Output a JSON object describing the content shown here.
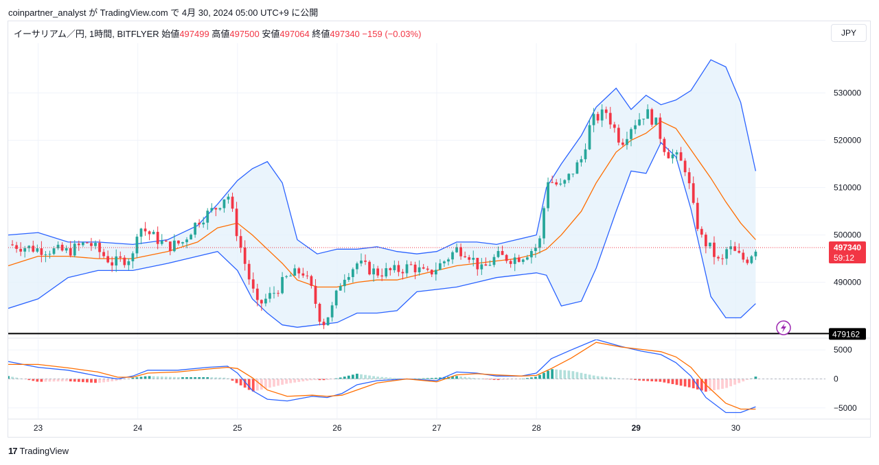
{
  "header": {
    "attribution": "coinpartner_analyst が TradingView.com で 4月 30, 2024 05:00 UTC+9 に公開"
  },
  "legend": {
    "symbol": "イーサリアム／円, 1時間, BITFLYER",
    "open_label": "始値",
    "open": "497499",
    "high_label": "高値",
    "high": "497500",
    "low_label": "安値",
    "low": "497064",
    "close_label": "終値",
    "close": "497340",
    "change": "−159 (−0.03%)"
  },
  "currency_button": "JPY",
  "footer": {
    "logo_mark": "17",
    "logo_text": "TradingView"
  },
  "colors": {
    "up": "#26a69a",
    "down": "#f23645",
    "bb_line": "#2962ff",
    "bb_fill": "#e3f0fb",
    "basis": "#ff6d00",
    "macd": "#2962ff",
    "signal": "#ff6d00",
    "hist_up_strong": "#26a69a",
    "hist_up_weak": "#b2dfdb",
    "hist_down_strong": "#ff5252",
    "hist_down_weak": "#ffcdd2"
  },
  "icons": {
    "flash": "lightning-icon"
  },
  "chart_data": [
    {
      "type": "candlestick",
      "x_unit": "day of month (April 2024, hourly bars)",
      "x_range": [
        22.7,
        30.9
      ],
      "x_ticks": [
        {
          "value": 23,
          "label": "23"
        },
        {
          "value": 24,
          "label": "24"
        },
        {
          "value": 25,
          "label": "25"
        },
        {
          "value": 26,
          "label": "26"
        },
        {
          "value": 27,
          "label": "27"
        },
        {
          "value": 28,
          "label": "28"
        },
        {
          "value": 29,
          "label": "29",
          "bold": true
        },
        {
          "value": 30,
          "label": "30"
        }
      ],
      "ylim": [
        478500,
        540500
      ],
      "y_ticks": [
        490000,
        500000,
        510000,
        520000,
        530000
      ],
      "last_price_label": "497340",
      "countdown_label": "59:12",
      "horizontal_line": {
        "value": 479162,
        "label": "479162"
      },
      "close_path": [
        [
          22.7,
          498000
        ],
        [
          23.0,
          497000
        ],
        [
          23.3,
          496500
        ],
        [
          23.5,
          498500
        ],
        [
          23.75,
          494000
        ],
        [
          23.95,
          495500
        ],
        [
          24.0,
          502000
        ],
        [
          24.1,
          500500
        ],
        [
          24.3,
          497500
        ],
        [
          24.45,
          498500
        ],
        [
          24.6,
          503000
        ],
        [
          24.8,
          506000
        ],
        [
          24.9,
          509000
        ],
        [
          25.0,
          500000
        ],
        [
          25.1,
          492000
        ],
        [
          25.2,
          485000
        ],
        [
          25.35,
          487500
        ],
        [
          25.5,
          491000
        ],
        [
          25.65,
          492500
        ],
        [
          25.75,
          488000
        ],
        [
          25.85,
          481000
        ],
        [
          25.95,
          484500
        ],
        [
          26.05,
          491000
        ],
        [
          26.2,
          494000
        ],
        [
          26.4,
          492000
        ],
        [
          26.6,
          492500
        ],
        [
          26.75,
          493500
        ],
        [
          26.9,
          491500
        ],
        [
          27.05,
          494000
        ],
        [
          27.2,
          497000
        ],
        [
          27.3,
          496500
        ],
        [
          27.45,
          492500
        ],
        [
          27.6,
          495500
        ],
        [
          27.75,
          495000
        ],
        [
          27.85,
          495500
        ],
        [
          28.0,
          497500
        ],
        [
          28.05,
          499500
        ],
        [
          28.1,
          512000
        ],
        [
          28.25,
          510000
        ],
        [
          28.45,
          516000
        ],
        [
          28.55,
          524000
        ],
        [
          28.7,
          526000
        ],
        [
          28.85,
          519500
        ],
        [
          28.95,
          523000
        ],
        [
          29.1,
          526000
        ],
        [
          29.2,
          523500
        ],
        [
          29.3,
          517500
        ],
        [
          29.4,
          516500
        ],
        [
          29.5,
          514000
        ],
        [
          29.58,
          505000
        ],
        [
          29.65,
          499500
        ],
        [
          29.75,
          497000
        ],
        [
          29.85,
          493500
        ],
        [
          29.92,
          497500
        ],
        [
          30.0,
          496000
        ],
        [
          30.1,
          494500
        ],
        [
          30.2,
          497340
        ]
      ],
      "bollinger": {
        "upper": [
          [
            22.7,
            500000
          ],
          [
            23.0,
            500500
          ],
          [
            23.3,
            498500
          ],
          [
            23.6,
            498500
          ],
          [
            23.95,
            498000
          ],
          [
            24.3,
            499000
          ],
          [
            24.6,
            502000
          ],
          [
            24.8,
            506500
          ],
          [
            25.0,
            511500
          ],
          [
            25.15,
            514000
          ],
          [
            25.3,
            515500
          ],
          [
            25.45,
            511000
          ],
          [
            25.6,
            499000
          ],
          [
            25.8,
            496000
          ],
          [
            26.0,
            497000
          ],
          [
            26.2,
            497000
          ],
          [
            26.4,
            497500
          ],
          [
            26.6,
            496500
          ],
          [
            26.8,
            496000
          ],
          [
            27.0,
            496500
          ],
          [
            27.2,
            498500
          ],
          [
            27.4,
            498500
          ],
          [
            27.6,
            498000
          ],
          [
            27.8,
            499000
          ],
          [
            28.0,
            500000
          ],
          [
            28.1,
            510000
          ],
          [
            28.25,
            515000
          ],
          [
            28.45,
            521000
          ],
          [
            28.6,
            527000
          ],
          [
            28.8,
            531000
          ],
          [
            28.95,
            526500
          ],
          [
            29.1,
            529500
          ],
          [
            29.25,
            527500
          ],
          [
            29.4,
            528500
          ],
          [
            29.55,
            530500
          ],
          [
            29.75,
            537000
          ],
          [
            29.9,
            535500
          ],
          [
            30.05,
            528000
          ],
          [
            30.2,
            513500
          ]
        ],
        "basis": [
          [
            22.7,
            493500
          ],
          [
            23.0,
            495500
          ],
          [
            23.3,
            495500
          ],
          [
            23.6,
            495000
          ],
          [
            23.95,
            495000
          ],
          [
            24.3,
            496500
          ],
          [
            24.6,
            498500
          ],
          [
            24.8,
            501500
          ],
          [
            25.0,
            502500
          ],
          [
            25.15,
            500000
          ],
          [
            25.3,
            497000
          ],
          [
            25.45,
            494000
          ],
          [
            25.6,
            490500
          ],
          [
            25.8,
            489000
          ],
          [
            26.0,
            489000
          ],
          [
            26.2,
            490000
          ],
          [
            26.4,
            490500
          ],
          [
            26.6,
            490500
          ],
          [
            26.8,
            491500
          ],
          [
            27.0,
            492500
          ],
          [
            27.2,
            493500
          ],
          [
            27.4,
            494000
          ],
          [
            27.6,
            494500
          ],
          [
            27.8,
            495000
          ],
          [
            28.0,
            496000
          ],
          [
            28.1,
            497000
          ],
          [
            28.25,
            500000
          ],
          [
            28.45,
            505000
          ],
          [
            28.6,
            511000
          ],
          [
            28.8,
            517500
          ],
          [
            28.95,
            520000
          ],
          [
            29.1,
            521500
          ],
          [
            29.25,
            524000
          ],
          [
            29.4,
            522500
          ],
          [
            29.55,
            518000
          ],
          [
            29.75,
            512000
          ],
          [
            29.9,
            507000
          ],
          [
            30.05,
            502500
          ],
          [
            30.2,
            499000
          ]
        ],
        "lower": [
          [
            22.7,
            484500
          ],
          [
            23.0,
            486500
          ],
          [
            23.3,
            491000
          ],
          [
            23.6,
            492500
          ],
          [
            23.95,
            492500
          ],
          [
            24.3,
            494000
          ],
          [
            24.6,
            495500
          ],
          [
            24.8,
            496500
          ],
          [
            25.0,
            492500
          ],
          [
            25.15,
            486500
          ],
          [
            25.3,
            483500
          ],
          [
            25.45,
            481000
          ],
          [
            25.6,
            480500
          ],
          [
            25.8,
            481000
          ],
          [
            26.0,
            481500
          ],
          [
            26.2,
            483500
          ],
          [
            26.4,
            483500
          ],
          [
            26.6,
            484000
          ],
          [
            26.8,
            488000
          ],
          [
            27.0,
            488500
          ],
          [
            27.2,
            489000
          ],
          [
            27.4,
            490000
          ],
          [
            27.6,
            491000
          ],
          [
            27.8,
            491500
          ],
          [
            28.0,
            492000
          ],
          [
            28.1,
            491500
          ],
          [
            28.25,
            485000
          ],
          [
            28.45,
            486000
          ],
          [
            28.6,
            493000
          ],
          [
            28.8,
            505000
          ],
          [
            28.95,
            513500
          ],
          [
            29.1,
            513000
          ],
          [
            29.25,
            519500
          ],
          [
            29.4,
            516500
          ],
          [
            29.55,
            505500
          ],
          [
            29.75,
            487000
          ],
          [
            29.9,
            482500
          ],
          [
            30.05,
            482500
          ],
          [
            30.2,
            485500
          ]
        ]
      }
    },
    {
      "type": "macd",
      "x_unit": "day of month (April 2024)",
      "ylim": [
        -6800,
        6800
      ],
      "y_ticks": [
        {
          "value": 5000,
          "label": "5000"
        },
        {
          "value": 0,
          "label": "0"
        },
        {
          "value": -5000,
          "label": "−5000"
        }
      ],
      "macd": [
        [
          22.7,
          3000
        ],
        [
          23.0,
          2000
        ],
        [
          23.3,
          1500
        ],
        [
          23.6,
          500
        ],
        [
          23.8,
          0
        ],
        [
          23.95,
          500
        ],
        [
          24.1,
          1500
        ],
        [
          24.4,
          1500
        ],
        [
          24.7,
          2000
        ],
        [
          24.9,
          2200
        ],
        [
          25.0,
          1000
        ],
        [
          25.15,
          -2000
        ],
        [
          25.3,
          -3500
        ],
        [
          25.5,
          -3800
        ],
        [
          25.75,
          -3000
        ],
        [
          25.9,
          -3200
        ],
        [
          26.05,
          -2500
        ],
        [
          26.2,
          -1000
        ],
        [
          26.4,
          -300
        ],
        [
          26.7,
          0
        ],
        [
          27.0,
          -300
        ],
        [
          27.2,
          1200
        ],
        [
          27.4,
          1000
        ],
        [
          27.6,
          500
        ],
        [
          27.85,
          500
        ],
        [
          28.0,
          1000
        ],
        [
          28.15,
          3500
        ],
        [
          28.35,
          5000
        ],
        [
          28.6,
          6800
        ],
        [
          28.85,
          5600
        ],
        [
          29.05,
          4800
        ],
        [
          29.25,
          4200
        ],
        [
          29.4,
          2800
        ],
        [
          29.55,
          500
        ],
        [
          29.7,
          -3200
        ],
        [
          29.9,
          -5800
        ],
        [
          30.05,
          -5800
        ],
        [
          30.2,
          -4800
        ]
      ],
      "signal": [
        [
          22.7,
          2500
        ],
        [
          23.0,
          2500
        ],
        [
          23.3,
          1900
        ],
        [
          23.6,
          1200
        ],
        [
          23.8,
          300
        ],
        [
          23.95,
          300
        ],
        [
          24.1,
          1000
        ],
        [
          24.4,
          1200
        ],
        [
          24.7,
          1700
        ],
        [
          24.9,
          2000
        ],
        [
          25.0,
          1800
        ],
        [
          25.15,
          200
        ],
        [
          25.3,
          -1900
        ],
        [
          25.5,
          -3000
        ],
        [
          25.75,
          -2800
        ],
        [
          25.9,
          -3000
        ],
        [
          26.05,
          -2800
        ],
        [
          26.2,
          -1900
        ],
        [
          26.4,
          -700
        ],
        [
          26.7,
          0
        ],
        [
          27.0,
          -500
        ],
        [
          27.2,
          700
        ],
        [
          27.4,
          900
        ],
        [
          27.6,
          700
        ],
        [
          27.85,
          500
        ],
        [
          28.0,
          600
        ],
        [
          28.15,
          1800
        ],
        [
          28.35,
          3600
        ],
        [
          28.6,
          6300
        ],
        [
          28.85,
          5500
        ],
        [
          29.05,
          5100
        ],
        [
          29.25,
          4700
        ],
        [
          29.4,
          3800
        ],
        [
          29.55,
          2000
        ],
        [
          29.7,
          -1000
        ],
        [
          29.9,
          -4200
        ],
        [
          30.05,
          -5200
        ],
        [
          30.2,
          -5200
        ]
      ]
    }
  ]
}
